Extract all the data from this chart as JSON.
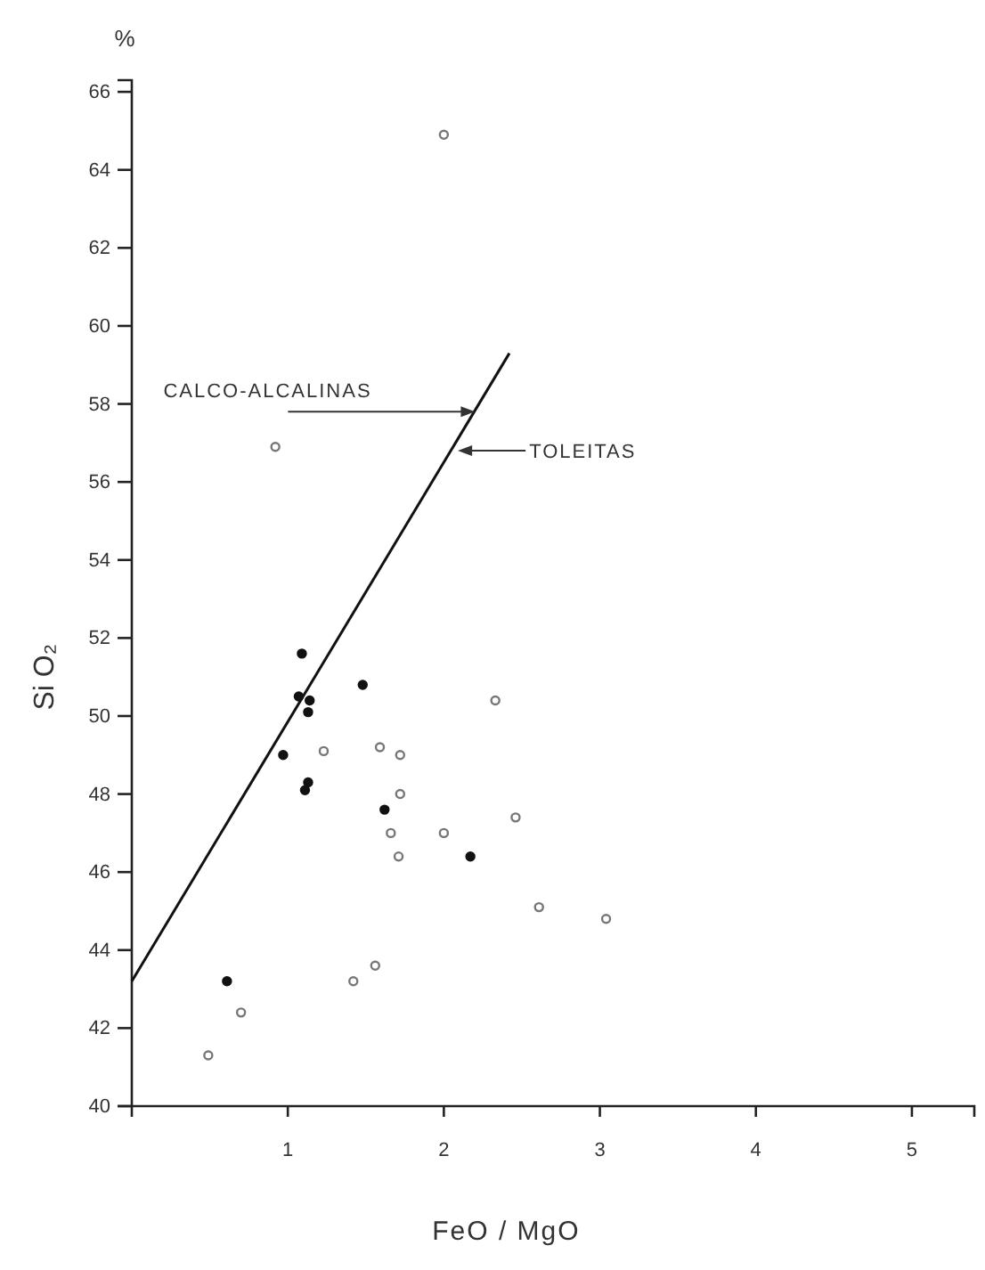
{
  "chart_data": {
    "type": "scatter",
    "xlabel": "FeO / MgO",
    "ylabel": "Si O₂",
    "xlim": [
      0,
      5.4
    ],
    "ylim": [
      40,
      66.3
    ],
    "xticks": [
      1,
      2,
      3,
      4,
      5
    ],
    "yticks": [
      40,
      42,
      44,
      46,
      48,
      50,
      52,
      54,
      56,
      58,
      60,
      62,
      64,
      66
    ],
    "grid": false,
    "marker": "circle",
    "annotations": [
      "%",
      {
        "text": "CALCO-ALCALINAS",
        "x": 2.2,
        "y": 57.8
      },
      {
        "text": "TOLEITAS",
        "x": 2.09,
        "y": 56.8
      }
    ],
    "series": [
      {
        "type": "line",
        "marker": "none",
        "color": "#111111",
        "x": [
          0,
          2.42
        ],
        "values": [
          43.2,
          59.3
        ]
      },
      {
        "color": "#111111",
        "x": [
          1.09,
          1.07,
          1.14,
          1.13,
          1.48,
          0.97,
          1.13,
          1.11,
          1.62,
          2.17,
          0.61
        ],
        "values": [
          51.6,
          50.5,
          50.4,
          50.1,
          50.8,
          49.0,
          48.3,
          48.1,
          47.6,
          46.4,
          43.2
        ]
      },
      {
        "color": "#777777",
        "x": [
          1.23,
          1.59,
          1.72,
          1.72,
          1.66,
          2.0,
          1.71,
          2.33,
          2.61,
          3.04,
          1.56,
          1.42,
          0.7,
          0.49,
          2.46,
          2.0,
          0.92
        ],
        "values": [
          49.1,
          49.2,
          49.0,
          48.0,
          47.0,
          47.0,
          46.4,
          50.4,
          45.1,
          44.8,
          43.6,
          43.2,
          42.4,
          41.3,
          47.4,
          64.9,
          56.9
        ]
      }
    ]
  }
}
